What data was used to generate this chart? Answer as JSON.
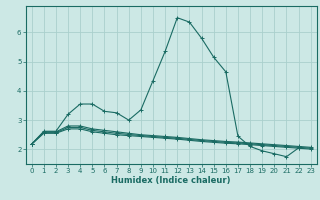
{
  "xlabel": "Humidex (Indice chaleur)",
  "ylabel": "",
  "xlim": [
    -0.5,
    23.5
  ],
  "ylim": [
    1.5,
    6.9
  ],
  "yticks": [
    2,
    3,
    4,
    5,
    6
  ],
  "xticks": [
    0,
    1,
    2,
    3,
    4,
    5,
    6,
    7,
    8,
    9,
    10,
    11,
    12,
    13,
    14,
    15,
    16,
    17,
    18,
    19,
    20,
    21,
    22,
    23
  ],
  "bg_color": "#cce8e5",
  "grid_color": "#aad0cc",
  "line_color": "#1a6b63",
  "lines": [
    {
      "x": [
        0,
        1,
        2,
        3,
        4,
        5,
        6,
        7,
        8,
        9,
        10,
        11,
        12,
        13,
        14,
        15,
        16,
        17,
        18,
        19,
        20,
        21,
        22
      ],
      "y": [
        2.18,
        2.62,
        2.62,
        3.2,
        3.55,
        3.55,
        3.3,
        3.25,
        3.0,
        3.35,
        4.35,
        5.35,
        6.5,
        6.35,
        5.8,
        5.15,
        4.65,
        2.45,
        2.1,
        1.95,
        1.85,
        1.75,
        2.05
      ]
    },
    {
      "x": [
        0,
        1,
        2,
        3,
        4,
        5,
        6,
        7,
        8,
        9,
        10,
        11,
        12,
        13,
        14,
        15,
        16,
        17,
        18,
        19,
        20,
        21,
        22,
        23
      ],
      "y": [
        2.18,
        2.6,
        2.6,
        2.8,
        2.8,
        2.7,
        2.65,
        2.6,
        2.55,
        2.5,
        2.47,
        2.44,
        2.41,
        2.37,
        2.33,
        2.3,
        2.27,
        2.25,
        2.22,
        2.19,
        2.16,
        2.13,
        2.1,
        2.07
      ]
    },
    {
      "x": [
        0,
        1,
        2,
        3,
        4,
        5,
        6,
        7,
        8,
        9,
        10,
        11,
        12,
        13,
        14,
        15,
        16,
        17,
        18,
        19,
        20,
        21,
        22,
        23
      ],
      "y": [
        2.18,
        2.55,
        2.55,
        2.7,
        2.7,
        2.6,
        2.55,
        2.5,
        2.47,
        2.44,
        2.41,
        2.38,
        2.35,
        2.31,
        2.27,
        2.24,
        2.21,
        2.19,
        2.16,
        2.13,
        2.1,
        2.07,
        2.04,
        2.01
      ]
    },
    {
      "x": [
        0,
        1,
        2,
        3,
        4,
        5,
        6,
        7,
        8,
        9,
        10,
        11,
        12,
        13,
        14,
        15,
        16,
        17,
        18,
        19,
        20,
        21,
        22,
        23
      ],
      "y": [
        2.18,
        2.57,
        2.57,
        2.75,
        2.75,
        2.65,
        2.6,
        2.55,
        2.51,
        2.47,
        2.44,
        2.41,
        2.38,
        2.34,
        2.3,
        2.27,
        2.24,
        2.22,
        2.19,
        2.16,
        2.13,
        2.1,
        2.07,
        2.04
      ]
    }
  ],
  "marker": "+",
  "markersize": 3,
  "linewidth": 0.8,
  "label_fontsize": 6,
  "tick_fontsize": 5
}
